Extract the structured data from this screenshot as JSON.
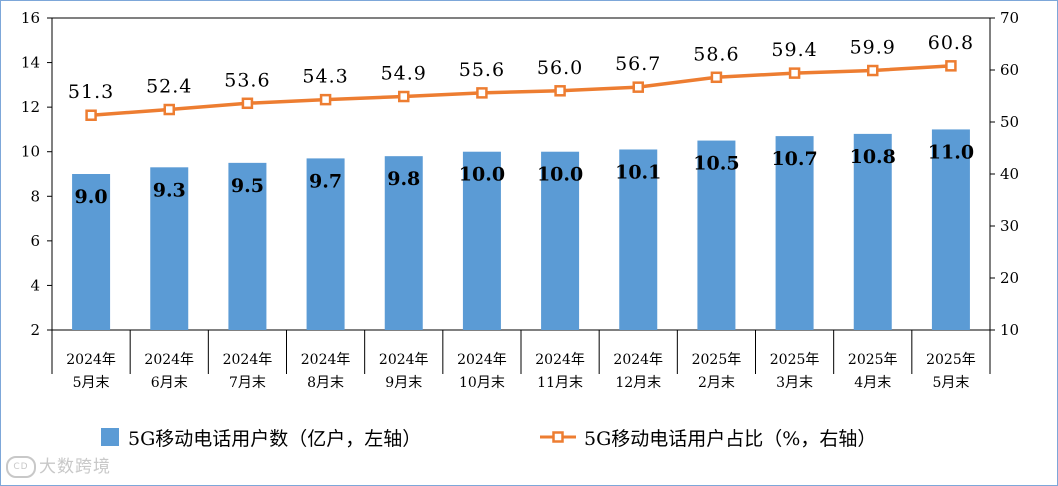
{
  "chart_data": {
    "type": "bar+line",
    "categories": [
      [
        "2024年",
        "5月末"
      ],
      [
        "2024年",
        "6月末"
      ],
      [
        "2024年",
        "7月末"
      ],
      [
        "2024年",
        "8月末"
      ],
      [
        "2024年",
        "9月末"
      ],
      [
        "2024年",
        "10月末"
      ],
      [
        "2024年",
        "11月末"
      ],
      [
        "2024年",
        "12月末"
      ],
      [
        "2025年",
        "2月末"
      ],
      [
        "2025年",
        "3月末"
      ],
      [
        "2025年",
        "4月末"
      ],
      [
        "2025年",
        "5月末"
      ]
    ],
    "series": [
      {
        "name": "5G移动电话用户数（亿户，左轴）",
        "kind": "bar",
        "axis": "left",
        "values": [
          9.0,
          9.3,
          9.5,
          9.7,
          9.8,
          10.0,
          10.0,
          10.1,
          10.5,
          10.7,
          10.8,
          11.0
        ],
        "labels": [
          "9.0",
          "9.3",
          "9.5",
          "9.7",
          "9.8",
          "10.0",
          "10.0",
          "10.1",
          "10.5",
          "10.7",
          "10.8",
          "11.0"
        ],
        "color": "#5b9bd5"
      },
      {
        "name": "5G移动电话用户占比（%，右轴）",
        "kind": "line",
        "axis": "right",
        "values": [
          51.3,
          52.4,
          53.6,
          54.3,
          54.9,
          55.6,
          56.0,
          56.7,
          58.6,
          59.4,
          59.9,
          60.8
        ],
        "labels": [
          "51.3",
          "52.4",
          "53.6",
          "54.3",
          "54.9",
          "55.6",
          "56.0",
          "56.7",
          "58.6",
          "59.4",
          "59.9",
          "60.8"
        ],
        "color": "#ed7d31"
      }
    ],
    "left_axis": {
      "min": 2,
      "max": 16,
      "ticks": [
        "2",
        "4",
        "6",
        "8",
        "10",
        "12",
        "14",
        "16"
      ]
    },
    "right_axis": {
      "min": 10,
      "max": 70,
      "ticks": [
        "10",
        "20",
        "30",
        "40",
        "50",
        "60",
        "70"
      ]
    },
    "grid": false,
    "legend_position": "bottom"
  },
  "watermark": {
    "text": "大数跨境",
    "icon": "logo-icon"
  }
}
